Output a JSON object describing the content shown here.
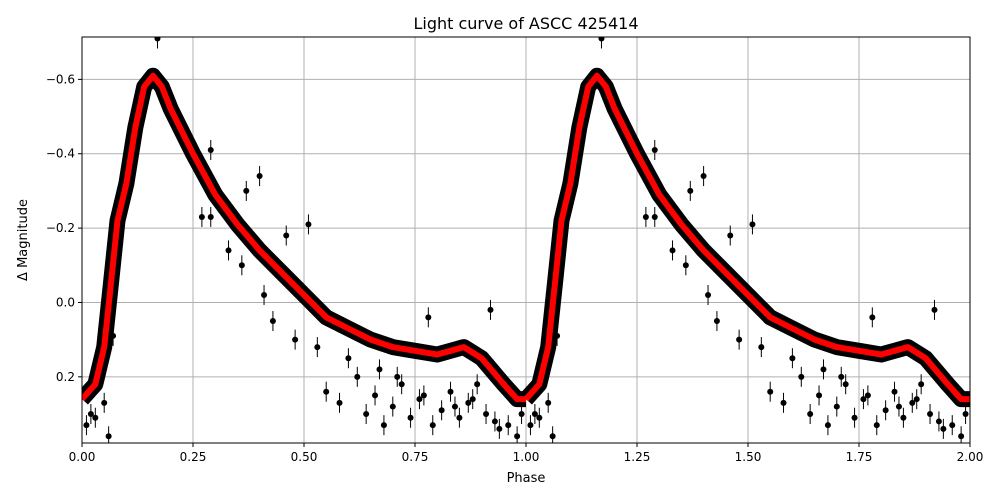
{
  "chart_data": {
    "type": "scatter",
    "title": "Light curve of ASCC 425414",
    "xlabel": "Phase",
    "ylabel": "Δ Magnitude",
    "xlim": [
      0,
      2
    ],
    "ylim": [
      0.378,
      -0.714
    ],
    "y_inverted": true,
    "grid": true,
    "xticks": [
      "0.00",
      "0.25",
      "0.50",
      "0.75",
      "1.00",
      "1.25",
      "1.50",
      "1.75",
      "2.00"
    ],
    "xtick_values": [
      0,
      0.25,
      0.5,
      0.75,
      1,
      1.25,
      1.5,
      1.75,
      2
    ],
    "yticks": [
      "−0.6",
      "−0.4",
      "−0.2",
      "0.0",
      "0.2"
    ],
    "ytick_values": [
      -0.6,
      -0.4,
      -0.2,
      0,
      0.2
    ],
    "colors": {
      "data": "#000000",
      "fit": "#ff0000",
      "grid": "#b0b0b0"
    },
    "fit_curve": {
      "phase": [
        0,
        0.03,
        0.05,
        0.065,
        0.08,
        0.1,
        0.12,
        0.14,
        0.16,
        0.18,
        0.2,
        0.25,
        0.3,
        0.35,
        0.4,
        0.45,
        0.5,
        0.55,
        0.6,
        0.65,
        0.7,
        0.75,
        0.8,
        0.83,
        0.86,
        0.9,
        0.95,
        0.98,
        1.0
      ],
      "mag": [
        0.26,
        0.22,
        0.12,
        -0.05,
        -0.22,
        -0.32,
        -0.47,
        -0.58,
        -0.61,
        -0.58,
        -0.52,
        -0.4,
        -0.29,
        -0.21,
        -0.14,
        -0.08,
        -0.02,
        0.04,
        0.07,
        0.1,
        0.12,
        0.13,
        0.14,
        0.13,
        0.12,
        0.15,
        0.22,
        0.26,
        0.26
      ]
    },
    "observations": {
      "phase": [
        0.17,
        0.1,
        0.4,
        0.51,
        0.37,
        0.29,
        0.27,
        0.29,
        0.06,
        0.07,
        0.78,
        0.92,
        0.46,
        0.05,
        0.02,
        0.55,
        0.58,
        0.62,
        0.64,
        0.66,
        0.68,
        0.7,
        0.72,
        0.74,
        0.76,
        0.79,
        0.81,
        0.83,
        0.85,
        0.87,
        0.89,
        0.91,
        0.94,
        0.96,
        0.98,
        0.99,
        0.6,
        0.53,
        0.48,
        0.43,
        0.41,
        0.36,
        0.33,
        0.67,
        0.71,
        0.77,
        0.84,
        0.88,
        0.93,
        0.01,
        0.03
      ],
      "mag": [
        -0.71,
        -0.4,
        -0.34,
        -0.21,
        -0.3,
        -0.41,
        -0.23,
        -0.23,
        0.36,
        0.09,
        0.04,
        0.02,
        -0.18,
        0.27,
        0.3,
        0.24,
        0.27,
        0.2,
        0.3,
        0.25,
        0.33,
        0.28,
        0.22,
        0.31,
        0.26,
        0.33,
        0.29,
        0.24,
        0.31,
        0.27,
        0.22,
        0.3,
        0.34,
        0.33,
        0.36,
        0.3,
        0.15,
        0.12,
        0.1,
        0.05,
        -0.02,
        -0.1,
        -0.14,
        0.18,
        0.2,
        0.25,
        0.28,
        0.26,
        0.32,
        0.33,
        0.31
      ]
    }
  }
}
